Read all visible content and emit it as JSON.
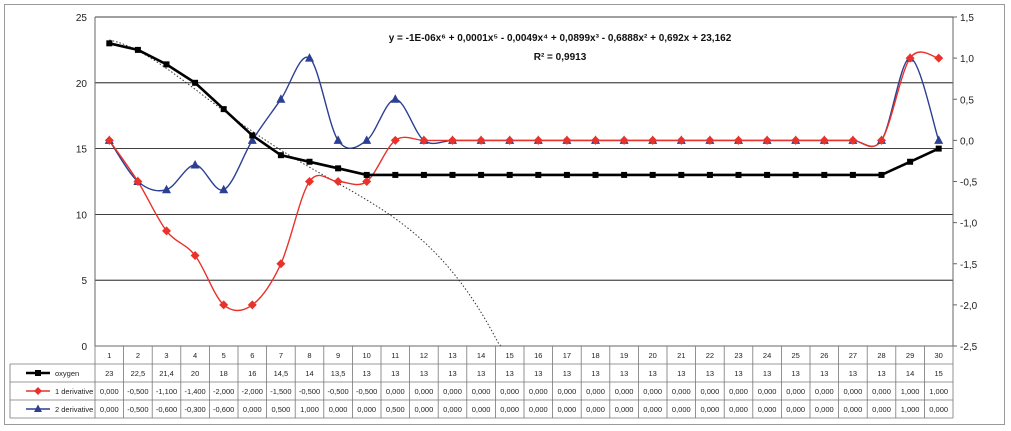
{
  "chart_data": {
    "type": "line",
    "title": "",
    "xlabel": "",
    "ylabel": "",
    "x": [
      1,
      2,
      3,
      4,
      5,
      6,
      7,
      8,
      9,
      10,
      11,
      12,
      13,
      14,
      15,
      16,
      17,
      18,
      19,
      20,
      21,
      22,
      23,
      24,
      25,
      26,
      27,
      28,
      29,
      30
    ],
    "x_tick_labels": [
      "1",
      "2",
      "3",
      "4",
      "5",
      "6",
      "7",
      "8",
      "9",
      "10",
      "11",
      "12",
      "13",
      "14",
      "15",
      "16",
      "17",
      "18",
      "19",
      "20",
      "21",
      "22",
      "23",
      "24",
      "25",
      "26",
      "27",
      "28",
      "29",
      "30"
    ],
    "ylim": [
      0,
      25
    ],
    "y_ticks": [
      "0",
      "5",
      "10",
      "15",
      "20",
      "25"
    ],
    "y2lim": [
      -2.5,
      1.5
    ],
    "y2_ticks": [
      "-2,5",
      "-2,0",
      "-1,5",
      "-1,0",
      "-0,5",
      "0,0",
      "0,5",
      "1,0",
      "1,5"
    ],
    "grid": true,
    "legend_position": "table-left",
    "annotation": {
      "equation": "y = -1E-06x⁶ + 0,0001x⁵ - 0,0049x⁴ + 0,0899x³ - 0,6888x² + 0,692x + 23,162",
      "r2": "R² = 0,9913"
    },
    "series": [
      {
        "name": "oxygen",
        "axis": "left",
        "color": "#000000",
        "marker": "square",
        "values": [
          23,
          22.5,
          21.4,
          20,
          18,
          16,
          14.5,
          14,
          13.5,
          13,
          13,
          13,
          13,
          13,
          13,
          13,
          13,
          13,
          13,
          13,
          13,
          13,
          13,
          13,
          13,
          13,
          13,
          13,
          14,
          15
        ],
        "table": [
          "23",
          "22,5",
          "21,4",
          "20",
          "18",
          "16",
          "14,5",
          "14",
          "13,5",
          "13",
          "13",
          "13",
          "13",
          "13",
          "13",
          "13",
          "13",
          "13",
          "13",
          "13",
          "13",
          "13",
          "13",
          "13",
          "13",
          "13",
          "13",
          "13",
          "14",
          "15"
        ]
      },
      {
        "name": "1 derivative",
        "axis": "right",
        "color": "#e8322a",
        "marker": "diamond",
        "values": [
          0,
          -0.5,
          -1.1,
          -1.4,
          -2,
          -2,
          -1.5,
          -0.5,
          -0.5,
          -0.5,
          0,
          0,
          0,
          0,
          0,
          0,
          0,
          0,
          0,
          0,
          0,
          0,
          0,
          0,
          0,
          0,
          0,
          0,
          1,
          1
        ],
        "table": [
          "0,000",
          "-0,500",
          "-1,100",
          "-1,400",
          "-2,000",
          "-2,000",
          "-1,500",
          "-0,500",
          "-0,500",
          "-0,500",
          "0,000",
          "0,000",
          "0,000",
          "0,000",
          "0,000",
          "0,000",
          "0,000",
          "0,000",
          "0,000",
          "0,000",
          "0,000",
          "0,000",
          "0,000",
          "0,000",
          "0,000",
          "0,000",
          "0,000",
          "0,000",
          "1,000",
          "1,000"
        ]
      },
      {
        "name": "2 derivative",
        "axis": "right",
        "color": "#2c3f93",
        "marker": "triangle",
        "values": [
          0,
          -0.5,
          -0.6,
          -0.3,
          -0.6,
          0,
          0.5,
          1,
          0,
          0,
          0.5,
          0,
          0,
          0,
          0,
          0,
          0,
          0,
          0,
          0,
          0,
          0,
          0,
          0,
          0,
          0,
          0,
          0,
          1,
          0
        ],
        "table": [
          "0,000",
          "-0,500",
          "-0,600",
          "-0,300",
          "-0,600",
          "0,000",
          "0,500",
          "1,000",
          "0,000",
          "0,000",
          "0,500",
          "0,000",
          "0,000",
          "0,000",
          "0,000",
          "0,000",
          "0,000",
          "0,000",
          "0,000",
          "0,000",
          "0,000",
          "0,000",
          "0,000",
          "0,000",
          "0,000",
          "0,000",
          "0,000",
          "0,000",
          "1,000",
          "0,000"
        ]
      }
    ]
  }
}
